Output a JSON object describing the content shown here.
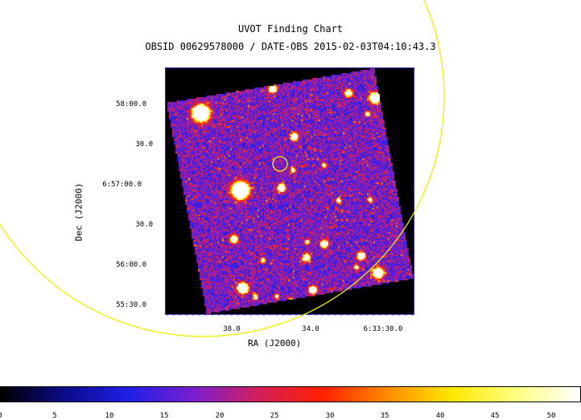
{
  "title": "UVOT Finding Chart",
  "subtitle": "OBSID 00629578000 / DATE-OBS 2015-02-03T04:10:43.3",
  "axes": {
    "xlabel": "RA (J2000)",
    "ylabel": "Dec (J2000)",
    "xticks": [
      "38.0",
      "34.0",
      "6:33:30.0"
    ],
    "yticks": [
      "58:00.0",
      "30.0",
      "6:57:00.0",
      "30.0",
      "56:00.0",
      "55:30.0"
    ]
  },
  "colorbar": {
    "ticks": [
      "0",
      "5",
      "10",
      "15",
      "20",
      "25",
      "30",
      "35",
      "40",
      "45",
      "50"
    ],
    "colormap": [
      "#000000",
      "#0b0b8a",
      "#1f1fe8",
      "#7a1fcf",
      "#d21f5a",
      "#ff2000",
      "#ff8a00",
      "#ffe600",
      "#ffff80",
      "#ffffff"
    ]
  },
  "colors": {
    "circles": "#f0f000",
    "frame": "#2a2ab0"
  }
}
